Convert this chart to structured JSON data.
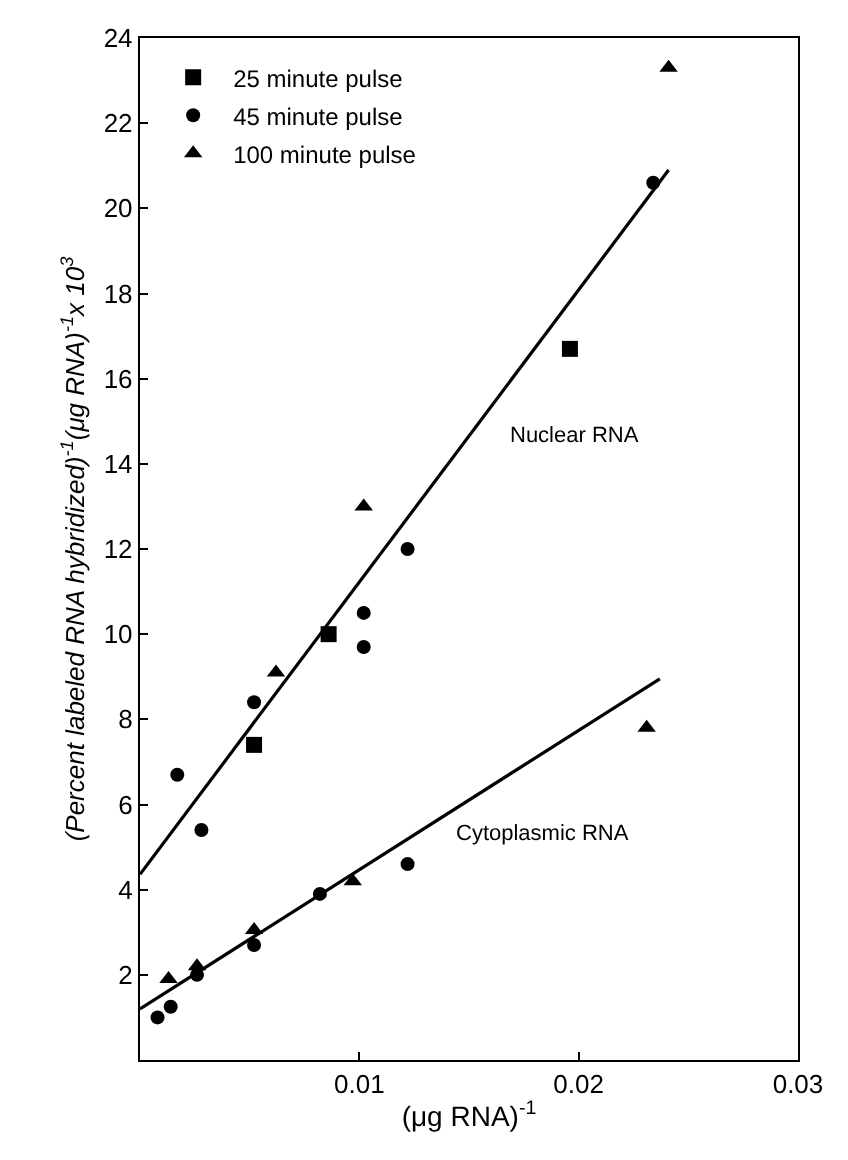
{
  "chart_data": {
    "type": "scatter",
    "xlabel": "(μg RNA)$^{-1}$",
    "ylabel": "(Percent labeled RNA hybridized)$^{-1}$(μg RNA)$^{-1}$x 10$^{3}$",
    "xlim": [
      0,
      0.03
    ],
    "xticks": [
      0.01,
      0.02,
      0.03
    ],
    "ylim": [
      0,
      24
    ],
    "yticks": [
      2,
      4,
      6,
      8,
      10,
      12,
      14,
      16,
      18,
      20,
      22,
      24
    ],
    "legend": "top left",
    "series": [
      {
        "name": "25 minute pulse",
        "color": "#000000",
        "marker": "square",
        "x": [
          0.0196,
          0.0086,
          0.0052
        ],
        "values": [
          16.7,
          10.0,
          7.4
        ]
      },
      {
        "name": "45 minute pulse",
        "color": "#000000",
        "marker": "circle",
        "x": [
          0.0234,
          0.0122,
          0.0102,
          0.0102,
          0.0052,
          0.0017,
          0.0028,
          0.0082,
          0.0122,
          0.0052,
          0.0008,
          0.0014,
          0.0026
        ],
        "values": [
          20.6,
          12.0,
          10.5,
          9.7,
          8.4,
          6.7,
          5.4,
          3.9,
          4.6,
          2.7,
          1.0,
          1.25,
          2.0
        ]
      },
      {
        "name": "100 minute pulse",
        "color": "#000000",
        "marker": "triangle",
        "x": [
          0.0241,
          0.0102,
          0.0062,
          0.0231,
          0.0097,
          0.0052,
          0.0026,
          0.0013
        ],
        "values": [
          23.3,
          13.0,
          9.1,
          7.8,
          4.2,
          3.05,
          2.2,
          1.9
        ]
      },
      {
        "type": "line",
        "color": "#000000",
        "line_style": "solid",
        "x": [
          0,
          0.0241
        ],
        "values": [
          4.36,
          20.9
        ]
      },
      {
        "type": "line",
        "color": "#000000",
        "line_style": "solid",
        "x": [
          0,
          0.0237
        ],
        "values": [
          1.2,
          8.95
        ]
      }
    ],
    "annotations": [
      "Nuclear RNA",
      "Cytoplasmic RNA"
    ]
  }
}
